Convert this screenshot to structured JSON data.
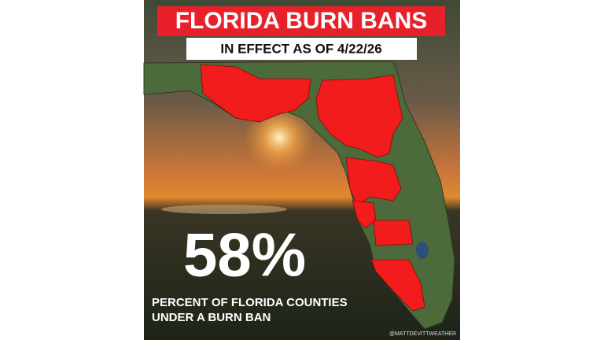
{
  "header": {
    "title": "FLORIDA BURN BANS",
    "subtitle": "IN EFFECT AS OF 4/22/26"
  },
  "stat": {
    "value": "58%",
    "caption": [
      "PERCENT OF FLORIDA COUNTIES",
      "UNDER A BURN BAN"
    ]
  },
  "credit": "@MATTDEVITTWEATHER"
}
